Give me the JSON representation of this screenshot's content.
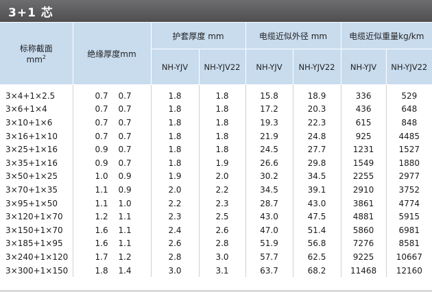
{
  "title": "3+1 芯",
  "headers": {
    "section": "标称截面",
    "section_unit": "mm",
    "section_unit_sup": "2",
    "insulation": "绝缘厚度mm",
    "sheath": "护套厚度 mm",
    "diameter": "电缆近似外径 mm",
    "weight": "电缆近似重量kg/km",
    "sub": [
      "NH-YJV",
      "NH-YJV22",
      "NH-YJV",
      "NH-YJV22",
      "NH-YJV",
      "NH-YJV22"
    ]
  },
  "rows": [
    {
      "section": "3×4+1×2.5",
      "ins_a": "0.7",
      "ins_b": "0.7",
      "sheath_yjv": "1.8",
      "sheath_yjv22": "1.8",
      "dia_yjv": "15.8",
      "dia_yjv22": "18.9",
      "wt_yjv": "336",
      "wt_yjv22": "529"
    },
    {
      "section": "3×6+1×4",
      "ins_a": "0.7",
      "ins_b": "0.7",
      "sheath_yjv": "1.8",
      "sheath_yjv22": "1.8",
      "dia_yjv": "17.2",
      "dia_yjv22": "20.3",
      "wt_yjv": "436",
      "wt_yjv22": "648"
    },
    {
      "section": "3×10+1×6",
      "ins_a": "0.7",
      "ins_b": "0.7",
      "sheath_yjv": "1.8",
      "sheath_yjv22": "1.8",
      "dia_yjv": "19.3",
      "dia_yjv22": "22.3",
      "wt_yjv": "615",
      "wt_yjv22": "848"
    },
    {
      "section": "3×16+1×10",
      "ins_a": "0.7",
      "ins_b": "0.7",
      "sheath_yjv": "1.8",
      "sheath_yjv22": "1.8",
      "dia_yjv": "21.9",
      "dia_yjv22": "24.8",
      "wt_yjv": "925",
      "wt_yjv22": "4485"
    },
    {
      "section": "3×25+1×16",
      "ins_a": "0.9",
      "ins_b": "0.7",
      "sheath_yjv": "1.8",
      "sheath_yjv22": "1.8",
      "dia_yjv": "24.5",
      "dia_yjv22": "27.7",
      "wt_yjv": "1231",
      "wt_yjv22": "1527"
    },
    {
      "section": "3×35+1×16",
      "ins_a": "0.9",
      "ins_b": "0.7",
      "sheath_yjv": "1.8",
      "sheath_yjv22": "1.9",
      "dia_yjv": "26.6",
      "dia_yjv22": "29.8",
      "wt_yjv": "1549",
      "wt_yjv22": "1880"
    },
    {
      "section": "3×50+1×25",
      "ins_a": "1.0",
      "ins_b": "0.9",
      "sheath_yjv": "1.9",
      "sheath_yjv22": "2.0",
      "dia_yjv": "30.2",
      "dia_yjv22": "34.5",
      "wt_yjv": "2255",
      "wt_yjv22": "2977"
    },
    {
      "section": "3×70+1×35",
      "ins_a": "1.1",
      "ins_b": "0.9",
      "sheath_yjv": "2.0",
      "sheath_yjv22": "2.2",
      "dia_yjv": "34.5",
      "dia_yjv22": "39.1",
      "wt_yjv": "2910",
      "wt_yjv22": "3752"
    },
    {
      "section": "3×95+1×50",
      "ins_a": "1.1",
      "ins_b": "1.0",
      "sheath_yjv": "2.2",
      "sheath_yjv22": "2.3",
      "dia_yjv": "28.7",
      "dia_yjv22": "43.0",
      "wt_yjv": "3861",
      "wt_yjv22": "4774"
    },
    {
      "section": "3×120+1×70",
      "ins_a": "1.2",
      "ins_b": "1.1",
      "sheath_yjv": "2.3",
      "sheath_yjv22": "2.5",
      "dia_yjv": "43.0",
      "dia_yjv22": "47.5",
      "wt_yjv": "4881",
      "wt_yjv22": "5915"
    },
    {
      "section": "3×150+1×70",
      "ins_a": "1.6",
      "ins_b": "1.1",
      "sheath_yjv": "2.4",
      "sheath_yjv22": "2.6",
      "dia_yjv": "47.0",
      "dia_yjv22": "51.4",
      "wt_yjv": "5860",
      "wt_yjv22": "6981"
    },
    {
      "section": "3×185+1×95",
      "ins_a": "1.6",
      "ins_b": "1.1",
      "sheath_yjv": "2.6",
      "sheath_yjv22": "2.8",
      "dia_yjv": "51.9",
      "dia_yjv22": "56.8",
      "wt_yjv": "7276",
      "wt_yjv22": "8581"
    },
    {
      "section": "3×240+1×120",
      "ins_a": "1.7",
      "ins_b": "1.2",
      "sheath_yjv": "2.8",
      "sheath_yjv22": "3.0",
      "dia_yjv": "57.7",
      "dia_yjv22": "62.5",
      "wt_yjv": "9225",
      "wt_yjv22": "10667"
    },
    {
      "section": "3×300+1×150",
      "ins_a": "1.8",
      "ins_b": "1.4",
      "sheath_yjv": "3.0",
      "sheath_yjv22": "3.1",
      "dia_yjv": "63.7",
      "dia_yjv22": "68.2",
      "wt_yjv": "11468",
      "wt_yjv22": "12160"
    }
  ]
}
